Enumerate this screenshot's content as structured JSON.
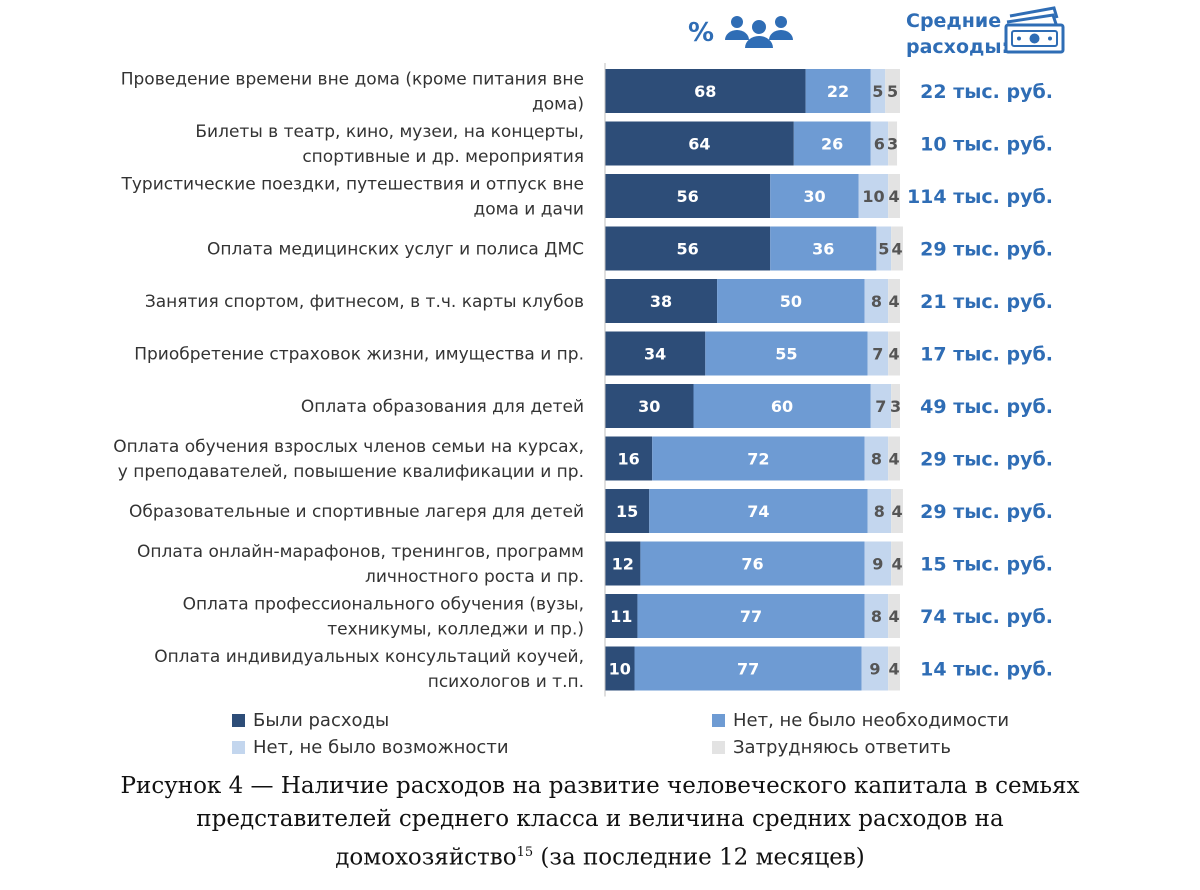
{
  "header": {
    "percent_sign": "%",
    "avg_label_line1": "Средние",
    "avg_label_line2": "расходы:"
  },
  "legend": {
    "had_expenses": "Были расходы",
    "no_need": "Нет, не было необходимости",
    "no_opportunity": "Нет, не было возможности",
    "hard_to_say": "Затрудняюсь ответить"
  },
  "caption": {
    "line1": "Рисунок 4 — Наличие расходов на развитие человеческого капитала в семьях",
    "line2": "представителей среднего класса и величина средних расходов на",
    "line3_start": "домохозяйство",
    "footnote": "15",
    "line3_end": " (за последние 12 месяцев)"
  },
  "colors": {
    "had_expenses": "#2d4d78",
    "no_need": "#6e9bd3",
    "no_opportunity": "#c3d6ee",
    "hard_to_say": "#e3e3e3",
    "accent": "#2f6db5"
  },
  "chart_data": {
    "type": "bar",
    "orientation": "horizontal",
    "stacked": true,
    "unit": "%",
    "categories": [
      [
        "Проведение времени вне дома (кроме питания вне",
        "дома)"
      ],
      [
        "Билеты в театр, кино, музеи, на концерты,",
        "спортивные и др. мероприятия"
      ],
      [
        "Туристические поездки, путешествия и отпуск вне",
        "дома и дачи"
      ],
      [
        "Оплата медицинских услуг и полиса ДМС"
      ],
      [
        "Занятия спортом, фитнесом, в т.ч. карты клубов"
      ],
      [
        "Приобретение страховок жизни, имущества и пр."
      ],
      [
        "Оплата образования для детей"
      ],
      [
        "Оплата обучения взрослых членов семьи на курсах,",
        "у преподавателей, повышение квалификации и пр."
      ],
      [
        "Образовательные и спортивные лагеря для детей"
      ],
      [
        "Оплата онлайн-марафонов, тренингов, программ",
        "личностного роста и пр."
      ],
      [
        "Оплата профессионального обучения (вузы,",
        "техникумы, колледжи и пр.)"
      ],
      [
        "Оплата индивидуальных консультаций коучей,",
        "психологов и т.п."
      ]
    ],
    "series": [
      {
        "name": "Были расходы",
        "color": "#2d4d78",
        "values": [
          68,
          64,
          56,
          56,
          38,
          34,
          30,
          16,
          15,
          12,
          11,
          10
        ]
      },
      {
        "name": "Нет, не было необходимости",
        "color": "#6e9bd3",
        "values": [
          22,
          26,
          30,
          36,
          50,
          55,
          60,
          72,
          74,
          76,
          77,
          77
        ]
      },
      {
        "name": "Нет, не было возможности",
        "color": "#c3d6ee",
        "values": [
          5,
          6,
          10,
          5,
          8,
          7,
          7,
          8,
          8,
          9,
          8,
          9
        ]
      },
      {
        "name": "Затрудняюсь ответить",
        "color": "#e3e3e3",
        "values": [
          5,
          3,
          4,
          4,
          4,
          4,
          3,
          4,
          4,
          4,
          4,
          4
        ]
      }
    ],
    "avg_expenses": [
      "22 тыс. руб.",
      "10 тыс. руб.",
      "114 тыс. руб.",
      "29 тыс. руб.",
      "21 тыс. руб.",
      "17 тыс. руб.",
      "49 тыс. руб.",
      "29 тыс. руб.",
      "29 тыс. руб.",
      "15 тыс. руб.",
      "74 тыс. руб.",
      "14 тыс. руб."
    ],
    "xlim": [
      0,
      100
    ],
    "legend_position": "bottom"
  }
}
